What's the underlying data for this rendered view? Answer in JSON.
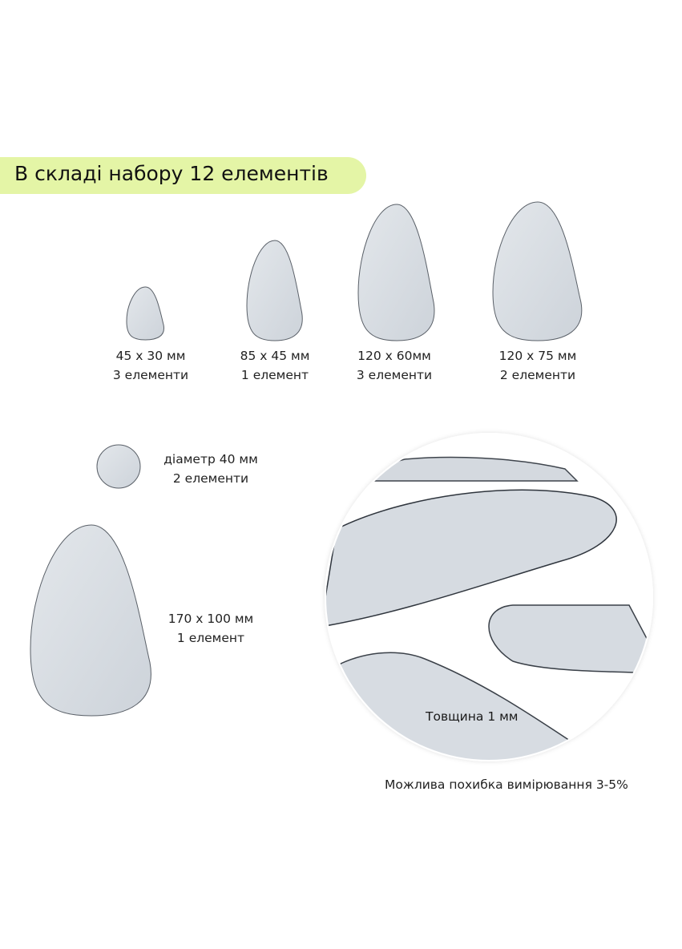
{
  "banner": {
    "title": "В складі набору 12 елементів",
    "color": "#e4f5a6"
  },
  "items": [
    {
      "size": "45 x 30 мм",
      "count": "3 елементи",
      "shape": "pebble"
    },
    {
      "size": "85 x 45 мм",
      "count": "1 елемент",
      "shape": "pebble"
    },
    {
      "size": "120 x 60мм",
      "count": "3 елементи",
      "shape": "pebble"
    },
    {
      "size": "120 x 75 мм",
      "count": "2 елементи",
      "shape": "pebble"
    },
    {
      "size": "діаметр 40 мм",
      "count": "2 елементи",
      "shape": "circle"
    },
    {
      "size": "170 x 100 мм",
      "count": "1 елемент",
      "shape": "pebble"
    }
  ],
  "detail": {
    "thickness": "Товщина 1 мм"
  },
  "footer": {
    "note": "Можлива похибка вимірювання 3-5%"
  },
  "colors": {
    "mirror": "#d6dbe1",
    "edge": "#4a5058"
  }
}
